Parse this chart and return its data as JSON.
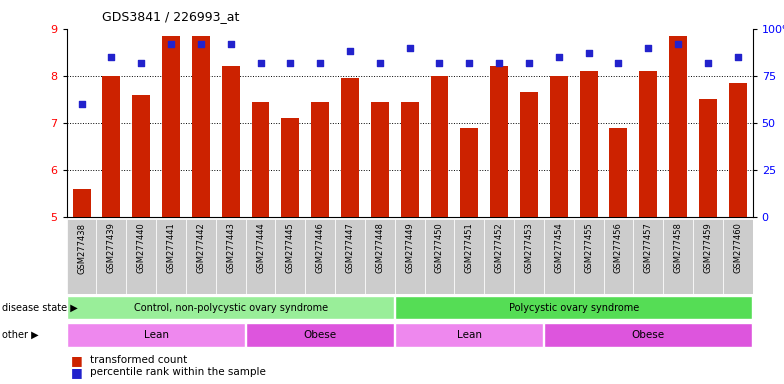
{
  "title": "GDS3841 / 226993_at",
  "samples": [
    "GSM277438",
    "GSM277439",
    "GSM277440",
    "GSM277441",
    "GSM277442",
    "GSM277443",
    "GSM277444",
    "GSM277445",
    "GSM277446",
    "GSM277447",
    "GSM277448",
    "GSM277449",
    "GSM277450",
    "GSM277451",
    "GSM277452",
    "GSM277453",
    "GSM277454",
    "GSM277455",
    "GSM277456",
    "GSM277457",
    "GSM277458",
    "GSM277459",
    "GSM277460"
  ],
  "bar_values": [
    5.6,
    8.0,
    7.6,
    8.85,
    8.85,
    8.2,
    7.45,
    7.1,
    7.45,
    7.95,
    7.45,
    7.45,
    8.0,
    6.9,
    8.2,
    7.65,
    8.0,
    8.1,
    6.9,
    8.1,
    8.85,
    7.5,
    7.85
  ],
  "dot_pct": [
    60,
    85,
    82,
    92,
    92,
    92,
    82,
    82,
    82,
    88,
    82,
    90,
    82,
    82,
    82,
    82,
    85,
    87,
    82,
    90,
    92,
    82,
    85
  ],
  "ylim": [
    5.0,
    9.0
  ],
  "y2lim": [
    0,
    100
  ],
  "yticks": [
    5,
    6,
    7,
    8,
    9
  ],
  "y2ticks": [
    0,
    25,
    50,
    75,
    100
  ],
  "bar_color": "#cc2200",
  "dot_color": "#2222cc",
  "bar_bottom": 5.0,
  "disease_state_groups": [
    {
      "label": "Control, non-polycystic ovary syndrome",
      "start": 0,
      "end": 11,
      "color": "#99ee99"
    },
    {
      "label": "Polycystic ovary syndrome",
      "start": 11,
      "end": 23,
      "color": "#55dd55"
    }
  ],
  "other_groups": [
    {
      "label": "Lean",
      "start": 0,
      "end": 6,
      "color": "#ee88ee"
    },
    {
      "label": "Obese",
      "start": 6,
      "end": 11,
      "color": "#dd55dd"
    },
    {
      "label": "Lean",
      "start": 11,
      "end": 16,
      "color": "#ee88ee"
    },
    {
      "label": "Obese",
      "start": 16,
      "end": 23,
      "color": "#dd55dd"
    }
  ],
  "background_color": "#ffffff",
  "bar_width": 0.6,
  "tick_bg_color": "#cccccc"
}
